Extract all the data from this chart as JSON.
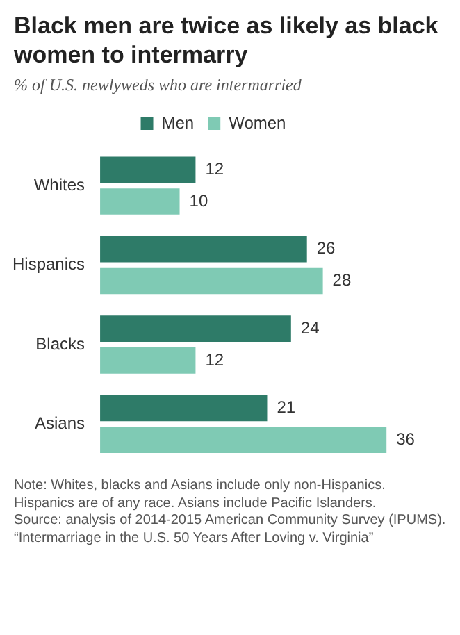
{
  "chart_data": {
    "type": "bar",
    "orientation": "horizontal",
    "title": "Black men are twice as likely as black women to intermarry",
    "subtitle": "% of U.S. newlyweds who are intermarried",
    "categories": [
      "Whites",
      "Hispanics",
      "Blacks",
      "Asians"
    ],
    "series": [
      {
        "name": "Men",
        "color": "#2e7b68",
        "values": [
          12,
          26,
          24,
          21
        ]
      },
      {
        "name": "Women",
        "color": "#7fcab4",
        "values": [
          10,
          28,
          12,
          36
        ]
      }
    ],
    "data_labels": true,
    "legend": "top",
    "grid": false,
    "annotations": [
      "Note: Whites, blacks and Asians include only non-Hispanics. Hispanics are of any race. Asians include Pacific Islanders.",
      "Source: analysis of 2014-2015 American Community Survey (IPUMS).",
      "“Intermarriage in the U.S. 50 Years After Loving v. Virginia”"
    ]
  }
}
